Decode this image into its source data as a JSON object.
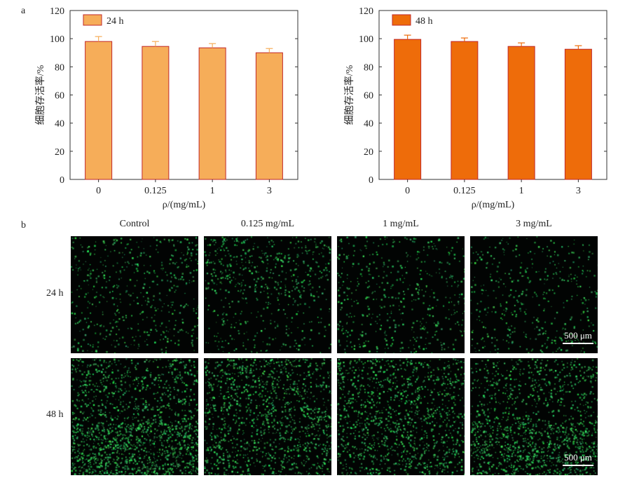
{
  "panel_labels": {
    "a": "a",
    "b": "b"
  },
  "chart_data": [
    {
      "type": "bar",
      "legend": "24 h",
      "categories": [
        "0",
        "0.125",
        "1",
        "3"
      ],
      "values": [
        98,
        94.5,
        93.5,
        90
      ],
      "errors": [
        3.5,
        3.5,
        3,
        3
      ],
      "ylabel": "细胞存活率/%",
      "xlabel": "ρ/(mg/mL)",
      "ylim": [
        0,
        120
      ],
      "yticks": [
        0,
        20,
        40,
        60,
        80,
        100,
        120
      ],
      "legend_position": "top-left",
      "color": "#f6ad59",
      "edge_color": "#c0282a"
    },
    {
      "type": "bar",
      "legend": "48 h",
      "categories": [
        "0",
        "0.125",
        "1",
        "3"
      ],
      "values": [
        99.5,
        98,
        94.5,
        92.5
      ],
      "errors": [
        3,
        2.5,
        2.5,
        2.5
      ],
      "ylabel": "细胞存活率/%",
      "xlabel": "ρ/(mg/mL)",
      "ylim": [
        0,
        120
      ],
      "yticks": [
        0,
        20,
        40,
        60,
        80,
        100,
        120
      ],
      "legend_position": "top-left",
      "color": "#ee6c0a",
      "edge_color": "#c0282a"
    }
  ],
  "micrographs": {
    "columns": [
      "Control",
      "0.125 mg/mL",
      "1 mg/mL",
      "3 mg/mL"
    ],
    "rows": [
      "24 h",
      "48 h"
    ],
    "scale_bar": "500 μm",
    "cell_color": "#2fd86a",
    "background_color": "#020403"
  }
}
